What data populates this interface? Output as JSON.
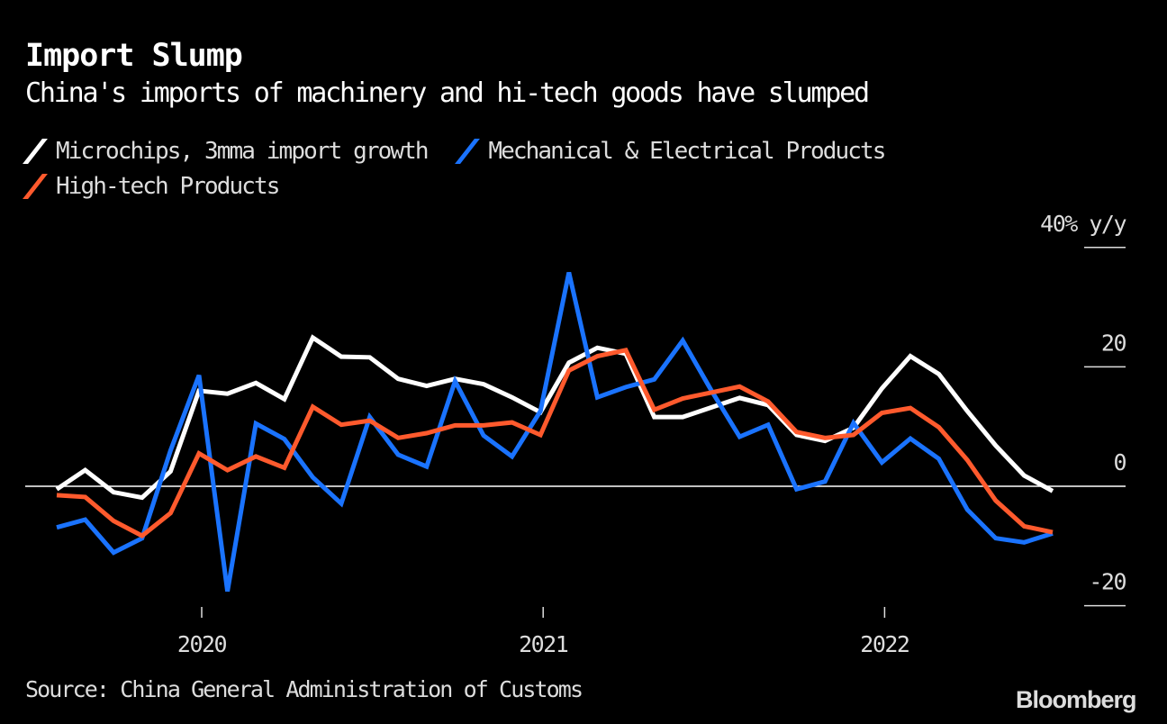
{
  "header": {
    "title": "Import Slump",
    "subtitle": "China's imports of machinery and hi-tech goods have slumped"
  },
  "legend": [
    {
      "label": "Microchips, 3mma import growth",
      "color": "#ffffff"
    },
    {
      "label": "Mechanical & Electrical Products",
      "color": "#1a73ff"
    },
    {
      "label": "High-tech Products",
      "color": "#ff5a2d"
    }
  ],
  "footer": {
    "source": "Source: China General Administration of Customs",
    "brand": "Bloomberg"
  },
  "chart_data": {
    "type": "line",
    "title": "Import Slump",
    "subtitle": "China's imports of machinery and hi-tech goods have slumped",
    "xlabel": "",
    "ylabel": "% y/y",
    "y_unit_label": "40% y/y",
    "ylim": [
      -20,
      40
    ],
    "yticks": [
      {
        "value": 40,
        "label": "40% y/y"
      },
      {
        "value": 20,
        "label": "20"
      },
      {
        "value": 0,
        "label": "0"
      },
      {
        "value": -20,
        "label": "-20"
      }
    ],
    "xticks": [
      {
        "label": "2020",
        "month_index": 5
      },
      {
        "label": "2021",
        "month_index": 17
      },
      {
        "label": "2022",
        "month_index": 29
      }
    ],
    "zero_line": true,
    "grid": false,
    "legend_position": "top-left",
    "x": [
      "2019-08",
      "2019-09",
      "2019-10",
      "2019-11",
      "2019-12",
      "2020-01",
      "2020-02",
      "2020-03",
      "2020-04",
      "2020-05",
      "2020-06",
      "2020-07",
      "2020-08",
      "2020-09",
      "2020-10",
      "2020-11",
      "2020-12",
      "2021-01",
      "2021-02",
      "2021-03",
      "2021-04",
      "2021-05",
      "2021-06",
      "2021-07",
      "2021-08",
      "2021-09",
      "2021-10",
      "2021-11",
      "2021-12",
      "2022-01",
      "2022-02",
      "2022-03",
      "2022-04",
      "2022-05",
      "2022-06",
      "2022-07"
    ],
    "series": [
      {
        "name": "Microchips, 3mma import growth",
        "color": "#ffffff",
        "values": [
          -0.5,
          2.7,
          -1.0,
          -1.9,
          2.5,
          16.0,
          15.5,
          17.3,
          14.6,
          24.9,
          21.7,
          21.6,
          18.0,
          16.8,
          18.0,
          17.1,
          14.9,
          12.4,
          20.7,
          23.2,
          22.2,
          11.6,
          11.6,
          13.2,
          14.8,
          13.6,
          8.6,
          7.6,
          9.8,
          16.4,
          21.8,
          18.8,
          12.6,
          6.8,
          1.8,
          -0.8
        ]
      },
      {
        "name": "Mechanical & Electrical Products",
        "color": "#1a73ff",
        "values": [
          -6.9,
          -5.6,
          -11.1,
          -8.7,
          6.0,
          18.6,
          -17.6,
          10.5,
          7.9,
          1.5,
          -2.9,
          11.6,
          5.3,
          3.3,
          17.6,
          8.5,
          5.0,
          12.6,
          35.8,
          14.9,
          16.6,
          17.9,
          24.4,
          16.1,
          8.3,
          10.3,
          -0.5,
          0.8,
          10.6,
          4.0,
          8.0,
          4.6,
          -3.9,
          -8.7,
          -9.4,
          -7.9
        ]
      },
      {
        "name": "High-tech Products",
        "color": "#ff5a2d",
        "values": [
          -1.5,
          -1.8,
          -5.8,
          -8.3,
          -4.5,
          5.5,
          2.7,
          5.0,
          3.1,
          13.3,
          10.3,
          11.0,
          8.1,
          8.9,
          10.2,
          10.2,
          10.7,
          8.6,
          19.4,
          21.8,
          22.8,
          12.8,
          14.7,
          15.7,
          16.7,
          14.2,
          9.1,
          8.1,
          8.6,
          12.3,
          13.1,
          9.9,
          4.4,
          -2.4,
          -6.7,
          -7.7
        ]
      }
    ]
  }
}
